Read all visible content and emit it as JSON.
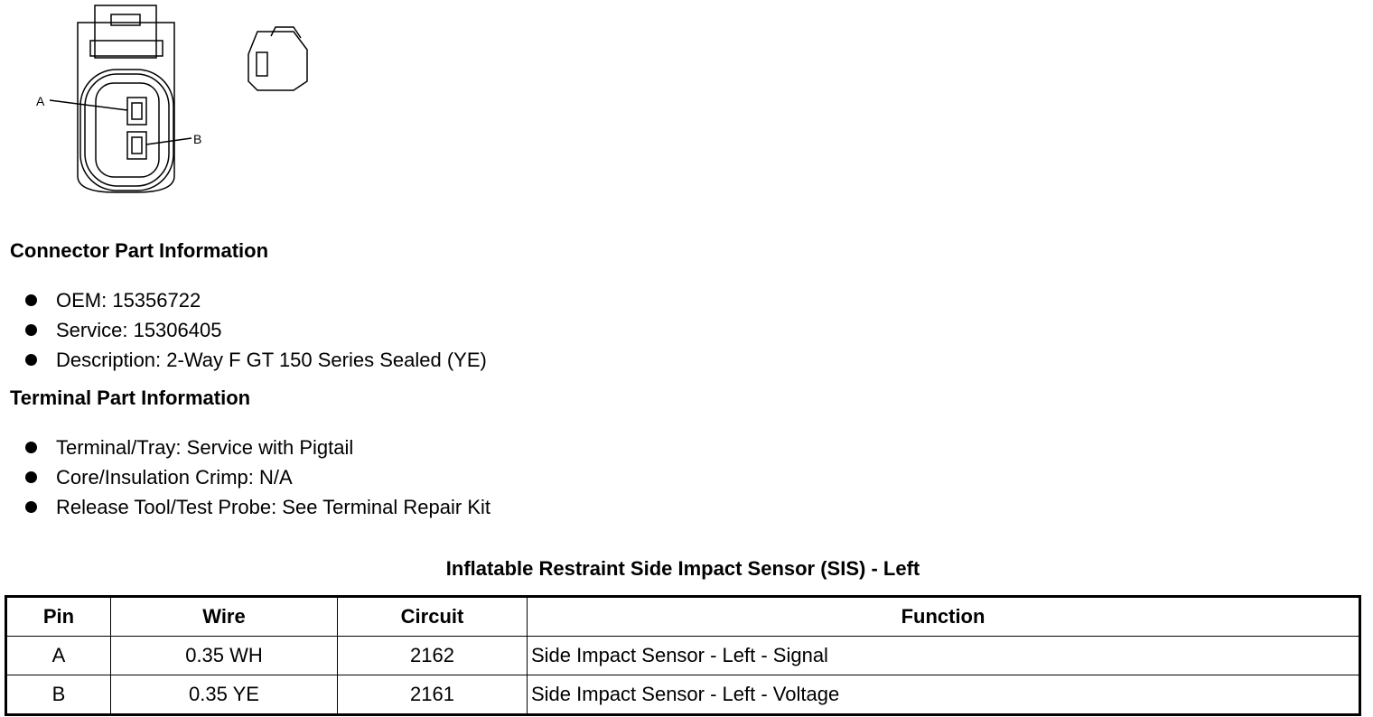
{
  "diagram": {
    "pin_labels": [
      "A",
      "B"
    ]
  },
  "connector_info": {
    "heading": "Connector Part Information",
    "items": [
      "OEM: 15356722",
      "Service: 15306405",
      "Description: 2-Way F GT 150 Series Sealed (YE)"
    ]
  },
  "terminal_info": {
    "heading": "Terminal Part Information",
    "items": [
      "Terminal/Tray: Service with Pigtail",
      "Core/Insulation Crimp: N/A",
      "Release Tool/Test Probe: See Terminal Repair Kit"
    ]
  },
  "table": {
    "caption": "Inflatable Restraint Side Impact Sensor (SIS) - Left",
    "headers": [
      "Pin",
      "Wire",
      "Circuit",
      "Function"
    ],
    "rows": [
      [
        "A",
        "0.35 WH",
        "2162",
        "Side Impact Sensor - Left - Signal"
      ],
      [
        "B",
        "0.35 YE",
        "2161",
        "Side Impact Sensor - Left - Voltage"
      ]
    ]
  }
}
